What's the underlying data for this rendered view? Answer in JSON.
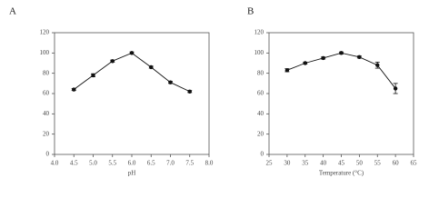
{
  "chart_data": [
    {
      "type": "line",
      "label": "A",
      "x_label": "pH",
      "x": [
        4.5,
        5.0,
        5.5,
        6.0,
        6.5,
        7.0,
        7.5
      ],
      "values": [
        64,
        78,
        92,
        100,
        86,
        71,
        62
      ],
      "errors": [
        1,
        1.5,
        1,
        1,
        1,
        1,
        1
      ],
      "color": "#111",
      "xlim": [
        4.0,
        8.0
      ],
      "xticks": [
        {
          "value": 4.0,
          "label": "4.0"
        },
        4.5,
        {
          "value": 5.0,
          "label": "5.0"
        },
        5.5,
        {
          "value": 6.0,
          "label": "6.0"
        },
        6.5,
        {
          "value": 7.0,
          "label": "7.0"
        },
        7.5,
        {
          "value": 8.0,
          "label": "8.0"
        }
      ],
      "ylim": [
        0,
        120
      ],
      "yticks": [
        0,
        20,
        40,
        60,
        80,
        100,
        120
      ]
    },
    {
      "type": "line",
      "label": "B",
      "x_label": "Temperature (°C)",
      "x": [
        30,
        35,
        40,
        45,
        50,
        55,
        60
      ],
      "values": [
        83,
        90,
        95,
        100,
        96,
        88,
        65
      ],
      "errors": [
        1.5,
        1,
        1,
        1,
        1,
        3,
        5
      ],
      "color": "#111",
      "xlim": [
        25,
        65
      ],
      "xticks": [
        25,
        30,
        35,
        40,
        45,
        50,
        55,
        60,
        65
      ],
      "ylim": [
        0,
        120
      ],
      "yticks": [
        0,
        20,
        40,
        60,
        80,
        100,
        120
      ]
    }
  ]
}
